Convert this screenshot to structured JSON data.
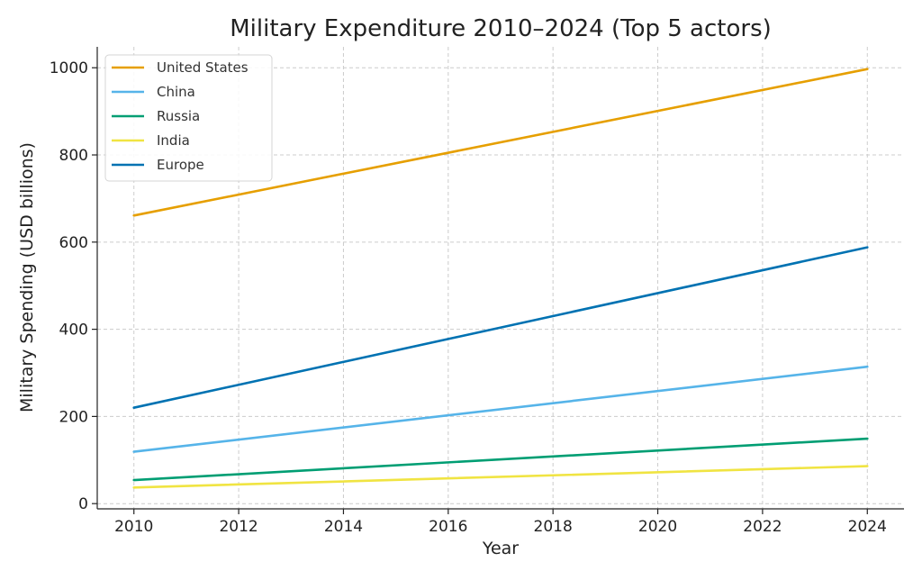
{
  "chart_data": {
    "type": "line",
    "title": "Military Expenditure 2010–2024 (Top 5 actors)",
    "xlabel": "Year",
    "ylabel": "Military Spending (USD billions)",
    "x": [
      2010,
      2024
    ],
    "x_ticks": [
      2010,
      2012,
      2014,
      2016,
      2018,
      2020,
      2022,
      2024
    ],
    "y_ticks": [
      0,
      200,
      400,
      600,
      800,
      1000
    ],
    "xlim": [
      2009.3,
      2024.7
    ],
    "ylim": [
      -12,
      1048
    ],
    "grid": true,
    "legend_position": "top-left",
    "series": [
      {
        "name": "United States",
        "color": "#e69f00",
        "values": [
          661,
          997
        ]
      },
      {
        "name": "China",
        "color": "#56b4e9",
        "values": [
          119,
          314
        ]
      },
      {
        "name": "Russia",
        "color": "#009e73",
        "values": [
          54,
          149
        ]
      },
      {
        "name": "India",
        "color": "#f0e442",
        "values": [
          37,
          86
        ]
      },
      {
        "name": "Europe",
        "color": "#0072b2",
        "values": [
          220,
          588
        ]
      }
    ]
  }
}
